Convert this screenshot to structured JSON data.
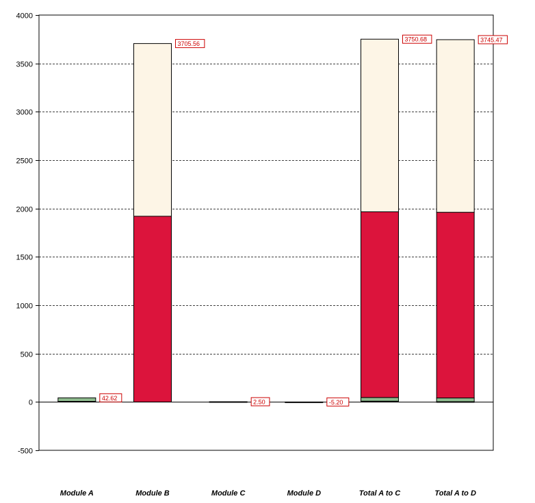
{
  "chart_data": {
    "type": "bar",
    "stacked": true,
    "categories": [
      "Module A",
      "Module B",
      "Module C",
      "Module D",
      "Total A to C",
      "Total A to D"
    ],
    "series": [
      {
        "color": "#1e6b35",
        "values": [
          6,
          0,
          0,
          -5.2,
          8,
          3
        ]
      },
      {
        "color": "#8fbc8f",
        "values": [
          36.62,
          0,
          2.5,
          0,
          38,
          38
        ]
      },
      {
        "color": "#dc143c",
        "values": [
          0,
          1920,
          0,
          0,
          1920,
          1920
        ]
      },
      {
        "color": "#fdf5e6",
        "values": [
          0,
          1785.56,
          0,
          0,
          1784.68,
          1784.47
        ]
      }
    ],
    "totals": [
      42.62,
      3705.56,
      2.5,
      -5.2,
      3750.68,
      3745.47
    ],
    "total_labels": [
      "42.62",
      "3705.56",
      "2.50",
      "-5.20",
      "3750.68",
      "3745.47"
    ],
    "y_ticks": [
      "-500",
      "0",
      "500",
      "1000",
      "1500",
      "2000",
      "2500",
      "3000",
      "3500",
      "4000"
    ],
    "ylim": [
      -500,
      4000
    ],
    "grid": true,
    "title": "",
    "xlabel": "",
    "ylabel": ""
  }
}
